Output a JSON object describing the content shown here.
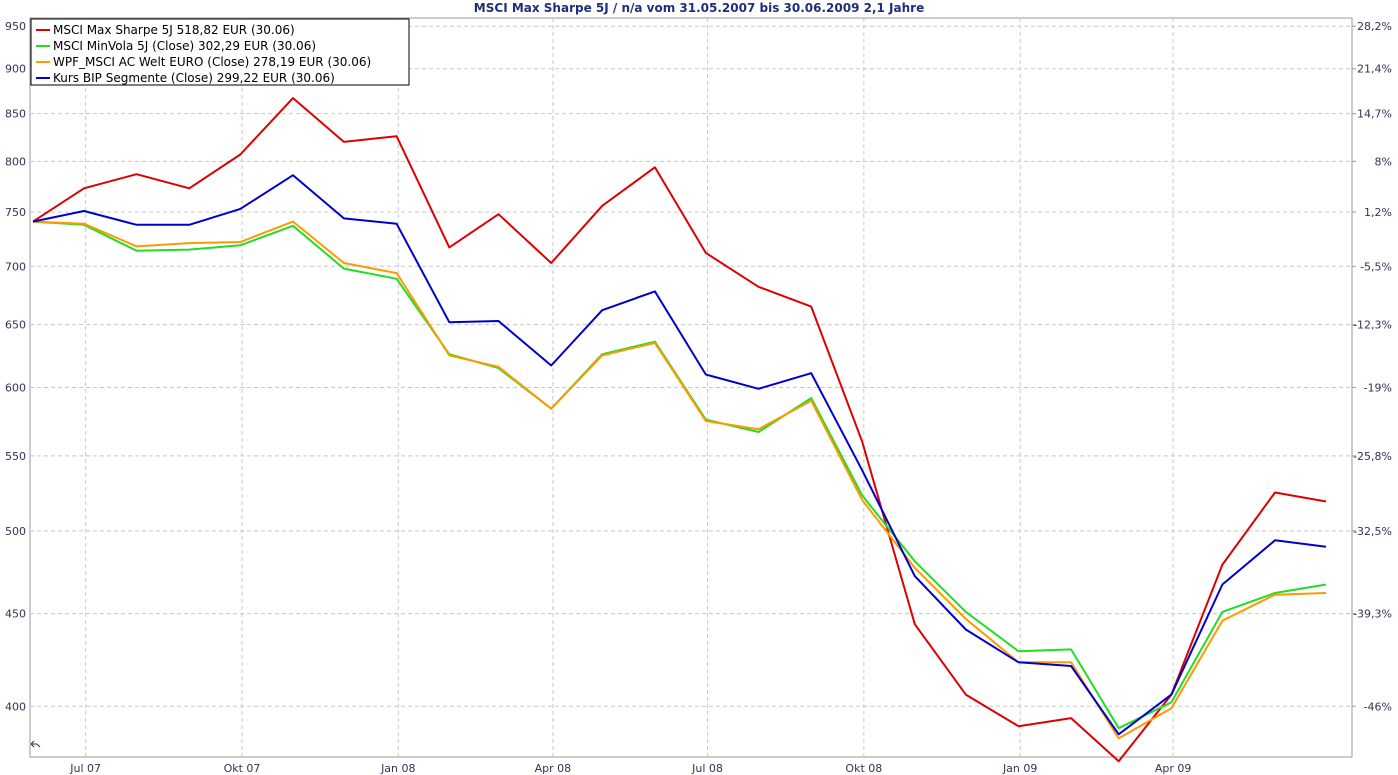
{
  "chart_data": {
    "type": "line",
    "title": "MSCI Max Sharpe 5J / n/a vom 31.05.2007 bis 30.06.2009 2,1 Jahre",
    "scale": "log",
    "ylim": [
      375,
      960
    ],
    "y_ticks_left": [
      400,
      450,
      500,
      550,
      600,
      650,
      700,
      750,
      800,
      850,
      900,
      950
    ],
    "y_ticks_right": [
      {
        "label": "28,2%",
        "value": 950
      },
      {
        "label": "21,4%",
        "value": 900
      },
      {
        "label": "14,7%",
        "value": 850
      },
      {
        "label": "8%",
        "value": 800
      },
      {
        "label": "1,2%",
        "value": 750
      },
      {
        "label": "-5,5%",
        "value": 700
      },
      {
        "label": "-12,3%",
        "value": 650
      },
      {
        "label": "-19%",
        "value": 600
      },
      {
        "label": "-25,8%",
        "value": 550
      },
      {
        "label": "-32,5%",
        "value": 500
      },
      {
        "label": "-39,3%",
        "value": 450
      },
      {
        "label": "-46%",
        "value": 400
      }
    ],
    "x_ticks": [
      {
        "label": "Jul 07",
        "date": "2007-07-01"
      },
      {
        "label": "Okt 07",
        "date": "2007-10-01"
      },
      {
        "label": "Jan 08",
        "date": "2008-01-01"
      },
      {
        "label": "Apr 08",
        "date": "2008-04-01"
      },
      {
        "label": "Jul 08",
        "date": "2008-07-01"
      },
      {
        "label": "Okt 08",
        "date": "2008-10-01"
      },
      {
        "label": "Jan 09",
        "date": "2009-01-01"
      },
      {
        "label": "Apr 09",
        "date": "2009-04-01"
      }
    ],
    "x_range": [
      "2007-05-31",
      "2009-06-30"
    ],
    "grid": true,
    "legend_position": "top-left",
    "x": [
      "2007-05-31",
      "2007-06-30",
      "2007-07-31",
      "2007-08-31",
      "2007-09-30",
      "2007-10-31",
      "2007-11-30",
      "2007-12-31",
      "2008-01-31",
      "2008-02-29",
      "2008-03-31",
      "2008-04-30",
      "2008-05-31",
      "2008-06-30",
      "2008-07-31",
      "2008-08-31",
      "2008-09-30",
      "2008-10-31",
      "2008-11-30",
      "2008-12-31",
      "2009-01-31",
      "2009-02-28",
      "2009-03-31",
      "2009-04-30",
      "2009-05-31",
      "2009-06-30"
    ],
    "series": [
      {
        "name": "MSCI Max Sharpe 5J 518,82 EUR (30.06)",
        "color": "#dd0000",
        "values": [
          741,
          773,
          787,
          773,
          807,
          867,
          820,
          826,
          717,
          748,
          703,
          756,
          794,
          712,
          682,
          665,
          560,
          444,
          406,
          390,
          394,
          373,
          406,
          479,
          525,
          519
        ]
      },
      {
        "name": "MSCI MinVola 5J (Close) 302,29 EUR (30.06)",
        "color": "#22dd22",
        "values": [
          741,
          738,
          714,
          715,
          719,
          737,
          698,
          689,
          626,
          615,
          584,
          626,
          636,
          576,
          567,
          592,
          523,
          481,
          451,
          429,
          430,
          389,
          402,
          451,
          462,
          467
        ]
      },
      {
        "name": "WPF_MSCI AC Welt EURO (Close) 278,19 EUR (30.06)",
        "color": "#ff9900",
        "values": [
          741,
          739,
          718,
          721,
          722,
          741,
          703,
          694,
          625,
          616,
          584,
          625,
          635,
          575,
          569,
          590,
          520,
          477,
          447,
          423,
          423,
          384,
          399,
          446,
          461,
          462
        ]
      },
      {
        "name": "Kurs BIP Segmente (Close) 299,22 EUR (30.06)",
        "color": "#0000cc",
        "values": [
          741,
          751,
          738,
          738,
          753,
          786,
          744,
          739,
          652,
          653,
          617,
          662,
          678,
          610,
          599,
          611,
          540,
          472,
          441,
          423,
          421,
          386,
          406,
          467,
          494,
          490
        ]
      }
    ]
  }
}
